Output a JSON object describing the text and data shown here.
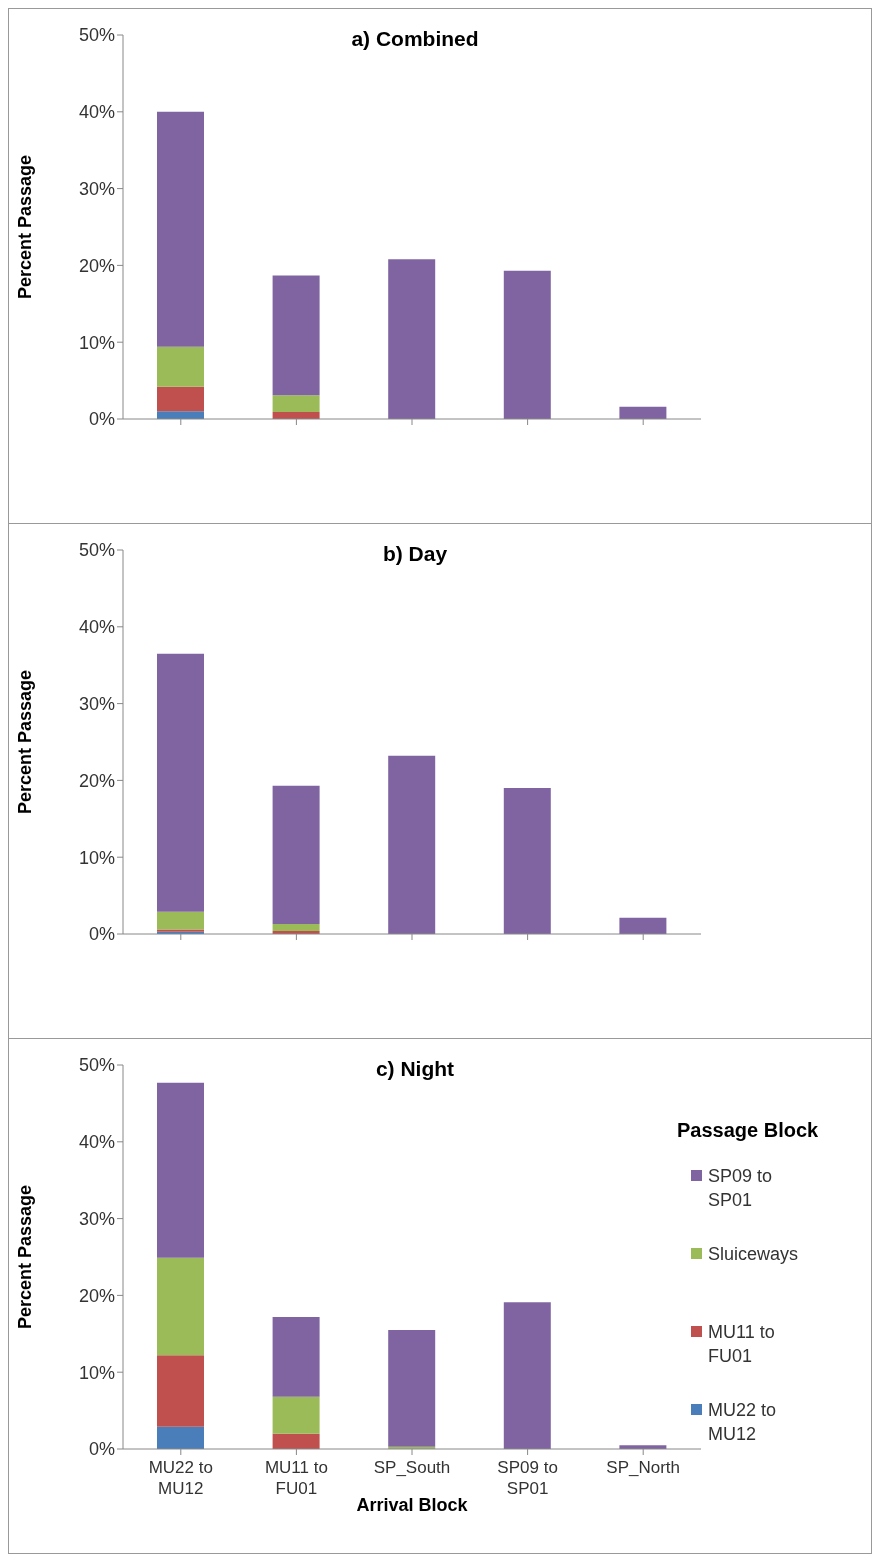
{
  "chart_data": [
    {
      "type": "bar",
      "title": "a) Combined",
      "ylabel": "Percent Passage",
      "stacked": true,
      "legend": false,
      "tick_labels": "y",
      "categories": [
        null,
        null,
        null,
        null,
        null
      ],
      "ylim": [
        0,
        50
      ],
      "yticks": [
        {
          "value": 0,
          "label": "0%"
        },
        {
          "value": 10,
          "label": "10%"
        },
        {
          "value": 20,
          "label": "20%"
        },
        {
          "value": 30,
          "label": "30%"
        },
        {
          "value": 40,
          "label": "40%"
        },
        {
          "value": 50,
          "label": "50%"
        }
      ],
      "series": [
        {
          "color": "#4a7ebb",
          "values": [
            1.0,
            0,
            0,
            0,
            0
          ]
        },
        {
          "color": "#c0504d",
          "values": [
            3.2,
            0.9,
            0,
            0,
            0
          ]
        },
        {
          "color": "#9bbb59",
          "values": [
            5.2,
            2.2,
            0,
            0,
            0
          ]
        },
        {
          "color": "#8064a2",
          "values": [
            30.6,
            15.6,
            20.8,
            19.3,
            1.6
          ]
        }
      ]
    },
    {
      "type": "bar",
      "title": "b) Day",
      "ylabel": "Percent Passage",
      "stacked": true,
      "legend": false,
      "tick_labels": "y",
      "categories": [
        null,
        null,
        null,
        null,
        null
      ],
      "ylim": [
        0,
        50
      ],
      "yticks": [
        {
          "value": 0,
          "label": "0%"
        },
        {
          "value": 10,
          "label": "10%"
        },
        {
          "value": 20,
          "label": "20%"
        },
        {
          "value": 30,
          "label": "30%"
        },
        {
          "value": 40,
          "label": "40%"
        },
        {
          "value": 50,
          "label": "50%"
        }
      ],
      "series": [
        {
          "color": "#4a7ebb",
          "values": [
            0.3,
            0,
            0,
            0,
            0
          ]
        },
        {
          "color": "#c0504d",
          "values": [
            0.3,
            0.4,
            0,
            0,
            0
          ]
        },
        {
          "color": "#9bbb59",
          "values": [
            2.3,
            0.9,
            0,
            0,
            0
          ]
        },
        {
          "color": "#8064a2",
          "values": [
            33.6,
            18.0,
            23.2,
            19.0,
            2.1
          ]
        }
      ]
    },
    {
      "type": "bar",
      "title": "c) Night",
      "xlabel": "Arrival Block",
      "ylabel": "Percent Passage",
      "legend_title": "Passage Block",
      "stacked": true,
      "legend": "right",
      "categories": [
        "MU22 to MU12",
        "MU11 to FU01",
        "SP_South",
        "SP09 to SP01",
        "SP_North"
      ],
      "ylim": [
        0,
        50
      ],
      "yticks": [
        {
          "value": 0,
          "label": "0%"
        },
        {
          "value": 10,
          "label": "10%"
        },
        {
          "value": 20,
          "label": "20%"
        },
        {
          "value": 30,
          "label": "30%"
        },
        {
          "value": 40,
          "label": "40%"
        },
        {
          "value": 50,
          "label": "50%"
        }
      ],
      "series": [
        {
          "name": "MU22 to MU12",
          "color": "#4a7ebb",
          "values": [
            2.9,
            0,
            0,
            0,
            0
          ]
        },
        {
          "name": "MU11 to FU01",
          "color": "#c0504d",
          "values": [
            9.3,
            2.0,
            0,
            0,
            0
          ]
        },
        {
          "name": "Sluiceways",
          "color": "#9bbb59",
          "values": [
            12.7,
            4.8,
            0.3,
            0,
            0
          ]
        },
        {
          "name": "SP09 to SP01",
          "color": "#8064a2",
          "values": [
            22.8,
            10.4,
            15.2,
            19.1,
            0.5
          ]
        }
      ]
    }
  ]
}
